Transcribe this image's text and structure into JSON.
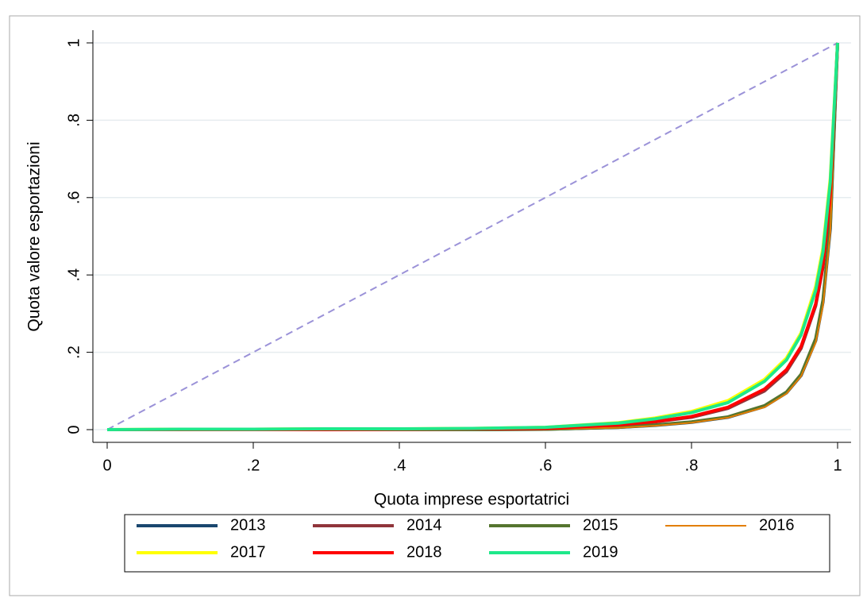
{
  "chart_data": {
    "type": "line",
    "x_label": "Quota imprese esportatrici",
    "y_label": "Quota valore esportazioni",
    "x": [
      0,
      0.1,
      0.2,
      0.3,
      0.4,
      0.5,
      0.6,
      0.7,
      0.75,
      0.8,
      0.85,
      0.9,
      0.93,
      0.95,
      0.97,
      0.98,
      0.99,
      1
    ],
    "series": [
      {
        "name": "2013",
        "color": "#1a476f",
        "width": 4,
        "values": [
          0,
          0,
          0,
          0,
          0,
          0,
          0.001,
          0.006,
          0.011,
          0.019,
          0.032,
          0.06,
          0.095,
          0.14,
          0.23,
          0.33,
          0.52,
          1
        ]
      },
      {
        "name": "2014",
        "color": "#90353b",
        "width": 4,
        "values": [
          0,
          0,
          0,
          0,
          0.001,
          0.002,
          0.003,
          0.011,
          0.02,
          0.032,
          0.055,
          0.1,
          0.15,
          0.21,
          0.32,
          0.42,
          0.6,
          1
        ]
      },
      {
        "name": "2015",
        "color": "#55752f",
        "width": 4,
        "values": [
          0,
          0,
          0,
          0,
          0,
          0,
          0.001,
          0.006,
          0.012,
          0.02,
          0.033,
          0.062,
          0.097,
          0.143,
          0.235,
          0.335,
          0.53,
          1
        ]
      },
      {
        "name": "2016",
        "color": "#e37e00",
        "width": 2,
        "values": [
          0,
          0,
          0,
          0,
          0,
          0,
          0.001,
          0.005,
          0.01,
          0.018,
          0.031,
          0.058,
          0.093,
          0.138,
          0.225,
          0.32,
          0.51,
          1
        ]
      },
      {
        "name": "2017",
        "color": "#ffff00",
        "width": 4,
        "values": [
          0,
          0.001,
          0.001,
          0.002,
          0.002,
          0.003,
          0.006,
          0.018,
          0.03,
          0.047,
          0.075,
          0.13,
          0.185,
          0.25,
          0.37,
          0.47,
          0.65,
          1
        ]
      },
      {
        "name": "2018",
        "color": "#ff0000",
        "width": 4,
        "values": [
          0,
          0,
          0,
          0,
          0.001,
          0.002,
          0.003,
          0.012,
          0.021,
          0.034,
          0.058,
          0.105,
          0.155,
          0.215,
          0.325,
          0.425,
          0.61,
          1
        ]
      },
      {
        "name": "2019",
        "color": "#1ee88a",
        "width": 4,
        "values": [
          0,
          0.001,
          0.001,
          0.002,
          0.002,
          0.003,
          0.006,
          0.017,
          0.028,
          0.044,
          0.07,
          0.125,
          0.18,
          0.245,
          0.36,
          0.46,
          0.64,
          1
        ]
      }
    ],
    "diagonal": {
      "color": "#9b92d8",
      "x": [
        0,
        1
      ],
      "values": [
        0,
        1
      ]
    },
    "xlim": [
      0,
      1
    ],
    "ylim": [
      0,
      1
    ],
    "xticks": [
      0,
      {
        "value": 0.2,
        "label": ".2"
      },
      {
        "value": 0.4,
        "label": ".4"
      },
      {
        "value": 0.6,
        "label": ".6"
      },
      {
        "value": 0.8,
        "label": ".8"
      },
      1
    ],
    "yticks": [
      0,
      {
        "value": 0.2,
        "label": ".2"
      },
      {
        "value": 0.4,
        "label": ".4"
      },
      {
        "value": 0.6,
        "label": ".6"
      },
      {
        "value": 0.8,
        "label": ".8"
      },
      1
    ],
    "grid": true,
    "legend": "bottom"
  }
}
